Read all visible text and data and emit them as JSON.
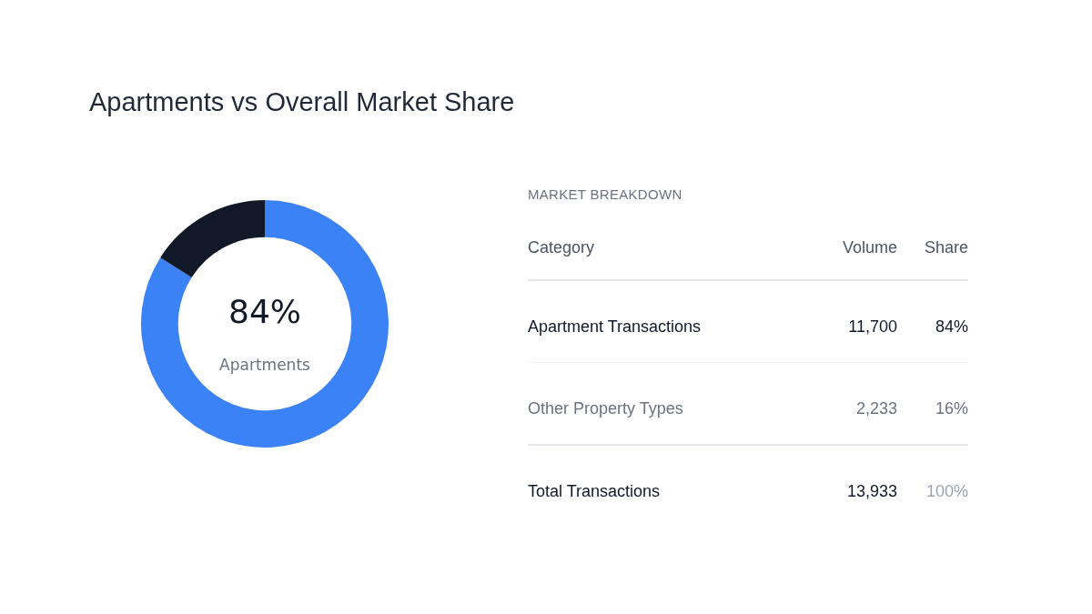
{
  "chart_data": [
    {
      "type": "donut",
      "title": "Apartments vs Overall Market Share",
      "categories": [
        "Apartments",
        null
      ],
      "values": [
        84,
        16
      ],
      "colors": [
        "#3b82f6",
        "#111827"
      ],
      "value_labels": [
        "84%",
        null
      ]
    },
    {
      "type": "other",
      "title": "MARKET BREAKDOWN",
      "xlabel": "Category",
      "categories": [
        "Apartment Transactions",
        "Other Property Types",
        "Total Transactions"
      ],
      "series": [
        {
          "name": "Volume",
          "values": [
            11700,
            2233,
            13933
          ],
          "value_labels": [
            "11,700",
            "2,233",
            "13,933"
          ]
        },
        {
          "name": "Share",
          "values": [
            84,
            16,
            100
          ],
          "value_labels": [
            "84%",
            "16%",
            "100%"
          ]
        }
      ]
    }
  ]
}
